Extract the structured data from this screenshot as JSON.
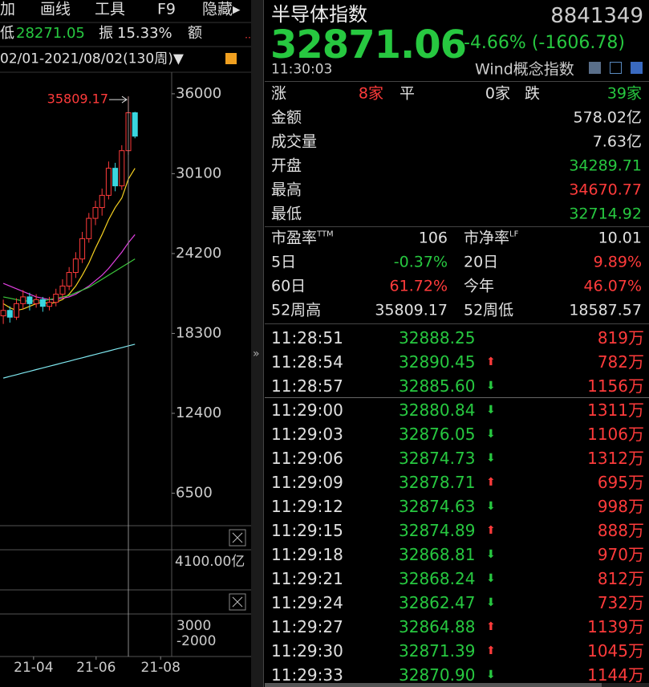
{
  "toolbar": [
    "加",
    "画线",
    "工具",
    "F9",
    "隐藏▸"
  ],
  "left_info": {
    "low_label": "低",
    "low": "28271.05",
    "amp_label": "振",
    "amp": "15.33%",
    "amount_label": "额"
  },
  "period": "02/01-2021/08/02(130周)▼",
  "chart_data": {
    "type": "candlestick",
    "x": [
      0,
      1,
      2,
      3,
      4,
      5,
      6,
      7,
      8,
      9,
      10,
      11,
      12,
      13,
      14,
      15,
      16,
      17,
      18,
      19,
      20
    ],
    "open": [
      19600,
      20000,
      19500,
      20500,
      21000,
      20500,
      20800,
      20300,
      20600,
      21200,
      21800,
      22800,
      23800,
      25300,
      26800,
      27600,
      28500,
      30500,
      29200,
      31800,
      34600
    ],
    "high": [
      20800,
      20300,
      20900,
      21500,
      21300,
      21200,
      21000,
      21000,
      21600,
      22300,
      23200,
      24300,
      25800,
      27200,
      28100,
      29000,
      31000,
      30900,
      32200,
      35809.17,
      34670.77
    ],
    "low": [
      19000,
      19100,
      19300,
      20100,
      20000,
      20200,
      19900,
      20000,
      20300,
      20900,
      21500,
      22400,
      23500,
      25000,
      26300,
      27000,
      28200,
      28800,
      28900,
      31500,
      32714.92
    ],
    "close": [
      20000,
      19500,
      20500,
      21000,
      20500,
      20800,
      20300,
      20600,
      21200,
      21800,
      22800,
      23800,
      25300,
      26800,
      27600,
      28500,
      30500,
      29200,
      31800,
      34600,
      32871.06
    ],
    "series": [
      {
        "color": "#f5d020",
        "values": [
          20500,
          20200,
          20000,
          20100,
          20300,
          20500,
          20600,
          20500,
          20600,
          20800,
          21200,
          21800,
          22600,
          23500,
          24600,
          25600,
          26700,
          27600,
          28300,
          29700,
          30500
        ]
      },
      {
        "color": "#e040e0",
        "values": [
          22000,
          21800,
          21600,
          21400,
          21200,
          21000,
          20900,
          20800,
          20800,
          20900,
          21000,
          21200,
          21500,
          21800,
          22200,
          22600,
          23100,
          23700,
          24300,
          25000,
          25600
        ]
      },
      {
        "color": "#3cc83c",
        "values": [
          21000,
          20900,
          20800,
          20700,
          20700,
          20700,
          20700,
          20800,
          20900,
          21000,
          21100,
          21300,
          21500,
          21700,
          22000,
          22300,
          22600,
          22900,
          23200,
          23500,
          23800
        ]
      },
      {
        "color": "#7fe8f0",
        "values": [
          15000,
          15130,
          15250,
          15380,
          15500,
          15630,
          15750,
          15880,
          16000,
          16130,
          16250,
          16380,
          16500,
          16630,
          16750,
          16880,
          17000,
          17130,
          17250,
          17380,
          17500
        ]
      }
    ],
    "up_color": "#ff3b3b",
    "down_color": "#3ad6e0",
    "ylim": [
      4100,
      37000
    ],
    "yticks": [
      6500,
      12400,
      18300,
      24200,
      30100,
      36000
    ],
    "xlim": [
      -0.5,
      25.7
    ],
    "xticks": [
      {
        "value": 4.6,
        "label": "21-04"
      },
      {
        "value": 14.1,
        "label": "21-06"
      },
      {
        "value": 23.9,
        "label": "21-08"
      }
    ],
    "annotation": "35809.17",
    "volume_label": "4100.00亿",
    "macd_labels": [
      "3000",
      "-2000"
    ]
  },
  "header": {
    "name": "半导体指数",
    "code": "8841349",
    "price": "32871.06",
    "change": "-4.66% (-1606.78)",
    "time": "11:30:03",
    "category": "Wind概念指数"
  },
  "breadth": {
    "up_label": "涨",
    "up": "8家",
    "flat_label": "平",
    "flat": "0家",
    "down_label": "跌",
    "down": "39家"
  },
  "stats": [
    {
      "label": "金额",
      "value": "578.02亿",
      "color": "#e0e0e0"
    },
    {
      "label": "成交量",
      "value": "7.63亿",
      "color": "#e0e0e0"
    },
    {
      "label": "开盘",
      "value": "34289.71",
      "color": "#27c840"
    },
    {
      "label": "最高",
      "value": "34670.77",
      "color": "#ff3b3b"
    },
    {
      "label": "最低",
      "value": "32714.92",
      "color": "#27c840"
    }
  ],
  "metrics": [
    [
      {
        "label": "市盈率",
        "sup": "TTM",
        "value": "106",
        "color": "#e0e0e0"
      },
      {
        "label": "市净率",
        "sup": "LF",
        "value": "10.01",
        "color": "#e0e0e0"
      }
    ],
    [
      {
        "label": "5日",
        "value": "-0.37%",
        "color": "#27c840"
      },
      {
        "label": "20日",
        "value": "9.89%",
        "color": "#ff3b3b"
      }
    ],
    [
      {
        "label": "60日",
        "value": "61.72%",
        "color": "#ff3b3b"
      },
      {
        "label": "今年",
        "value": "46.07%",
        "color": "#ff3b3b"
      }
    ],
    [
      {
        "label": "52周高",
        "value": "35809.17",
        "color": "#e0e0e0"
      },
      {
        "label": "52周低",
        "value": "18587.57",
        "color": "#e0e0e0"
      }
    ]
  ],
  "ticks": [
    {
      "time": "11:28:51",
      "price": "32888.25",
      "arrow": null,
      "volume": "819万"
    },
    {
      "time": "11:28:54",
      "price": "32890.45",
      "arrow": "up",
      "volume": "782万"
    },
    {
      "time": "11:28:57",
      "price": "32885.60",
      "arrow": "down",
      "volume": "1156万"
    },
    {
      "time": "11:29:00",
      "price": "32880.84",
      "arrow": "down",
      "volume": "1311万"
    },
    {
      "time": "11:29:03",
      "price": "32876.05",
      "arrow": "down",
      "volume": "1106万"
    },
    {
      "time": "11:29:06",
      "price": "32874.73",
      "arrow": "down",
      "volume": "1312万"
    },
    {
      "time": "11:29:09",
      "price": "32878.71",
      "arrow": "up",
      "volume": "695万"
    },
    {
      "time": "11:29:12",
      "price": "32874.63",
      "arrow": "down",
      "volume": "998万"
    },
    {
      "time": "11:29:15",
      "price": "32874.89",
      "arrow": "up",
      "volume": "888万"
    },
    {
      "time": "11:29:18",
      "price": "32868.81",
      "arrow": "down",
      "volume": "970万"
    },
    {
      "time": "11:29:21",
      "price": "32868.24",
      "arrow": "down",
      "volume": "812万"
    },
    {
      "time": "11:29:24",
      "price": "32862.47",
      "arrow": "down",
      "volume": "732万"
    },
    {
      "time": "11:29:27",
      "price": "32864.88",
      "arrow": "up",
      "volume": "1139万"
    },
    {
      "time": "11:29:30",
      "price": "32871.39",
      "arrow": "up",
      "volume": "1045万"
    },
    {
      "time": "11:29:33",
      "price": "32870.90",
      "arrow": "down",
      "volume": "1144万"
    }
  ]
}
